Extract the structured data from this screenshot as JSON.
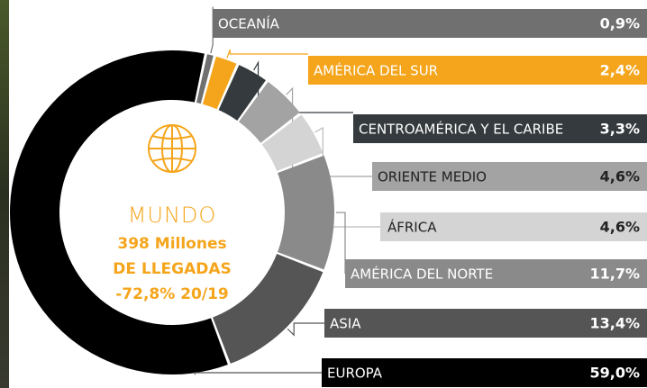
{
  "chart_data": {
    "type": "donut",
    "categories": [
      "OCEANÍA",
      "AMÉRICA DEL SUR",
      "CENTROAMÉRICA Y EL CARIBE",
      "ORIENTE MEDIO",
      "ÁFRICA",
      "AMÉRICA DEL NORTE",
      "ASIA",
      "EUROPA"
    ],
    "values": [
      0.9,
      2.4,
      3.3,
      4.6,
      4.6,
      11.7,
      13.4,
      59.0
    ],
    "value_labels": [
      "0,9%",
      "2,4%",
      "3,3%",
      "4,6%",
      "4,6%",
      "11,7%",
      "13,4%",
      "59,0%"
    ],
    "colors": [
      "#707070",
      "#f5a51c",
      "#343a3d",
      "#a3a3a3",
      "#d4d4d4",
      "#8a8a8a",
      "#555555",
      "#000000"
    ],
    "center_text": [
      "MUNDO",
      "398 Millones",
      "DE LLEGADAS",
      "-72,8% 20/19"
    ]
  }
}
